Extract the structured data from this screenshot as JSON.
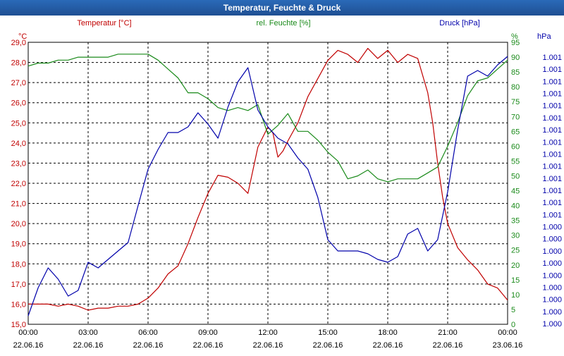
{
  "window": {
    "title": "Temperatur, Feuchte & Druck"
  },
  "colors": {
    "temperature": "#c00000",
    "humidity": "#1a8a1a",
    "pressure": "#0000aa",
    "grid": "#000000",
    "axis_text": "#000000"
  },
  "chart_data": {
    "type": "line",
    "title": "Temperatur, Feuchte & Druck",
    "grid": true,
    "x_axis": {
      "range": [
        "22.06.16 00:00",
        "23.06.16 00:00"
      ],
      "ticks": [
        {
          "time": "00:00",
          "date": "22.06.16"
        },
        {
          "time": "03:00",
          "date": "22.06.16"
        },
        {
          "time": "06:00",
          "date": "22.06.16"
        },
        {
          "time": "09:00",
          "date": "22.06.16"
        },
        {
          "time": "12:00",
          "date": "22.06.16"
        },
        {
          "time": "15:00",
          "date": "22.06.16"
        },
        {
          "time": "18:00",
          "date": "22.06.16"
        },
        {
          "time": "21:00",
          "date": "22.06.16"
        },
        {
          "time": "00:00",
          "date": "23.06.16"
        }
      ]
    },
    "y_axes": {
      "temperature": {
        "unit": "°C",
        "label": "Temperatur [°C]",
        "min": 15.0,
        "max": 29.0,
        "ticks": [
          "15,0",
          "16,0",
          "17,0",
          "18,0",
          "19,0",
          "20,0",
          "21,0",
          "22,0",
          "23,0",
          "24,0",
          "25,0",
          "26,0",
          "27,0",
          "28,0",
          "29,0"
        ]
      },
      "humidity": {
        "unit": "%",
        "label": "rel. Feuchte [%]",
        "min": 0,
        "max": 95,
        "ticks": [
          "0",
          "5",
          "10",
          "15",
          "20",
          "25",
          "30",
          "35",
          "40",
          "45",
          "50",
          "55",
          "60",
          "65",
          "70",
          "75",
          "80",
          "85",
          "90",
          "95"
        ]
      },
      "pressure": {
        "unit": "hPa",
        "label": "Druck [hPa]",
        "tick_label": "1.001",
        "tick_label_low": "1.000",
        "ticks": [
          "1.000",
          "1.000",
          "1.000",
          "1.000",
          "1.000",
          "1.000",
          "1.000",
          "1.000",
          "1.000",
          "1.001",
          "1.001",
          "1.001",
          "1.001",
          "1.001",
          "1.001",
          "1.001",
          "1.001",
          "1.001",
          "1.001",
          "1.001",
          "1.001",
          "1.001",
          "1.001"
        ]
      }
    },
    "series": [
      {
        "name": "Temperatur [°C]",
        "axis": "temperature",
        "x_hours": [
          0,
          0.5,
          1,
          1.5,
          2,
          2.5,
          3,
          3.5,
          4,
          4.5,
          5,
          5.5,
          6,
          6.5,
          7,
          7.5,
          8,
          8.5,
          9,
          9.5,
          10,
          10.5,
          11,
          11.5,
          12,
          12.25,
          12.5,
          12.75,
          13,
          13.5,
          14,
          14.5,
          15,
          15.5,
          16,
          16.5,
          17,
          17.5,
          18,
          18.5,
          19,
          19.5,
          20,
          20.25,
          20.5,
          20.75,
          21,
          21.5,
          22,
          22.5,
          23,
          23.5,
          24
        ],
        "values": [
          16.0,
          16.0,
          16.0,
          15.9,
          16.0,
          15.9,
          15.7,
          15.8,
          15.8,
          15.9,
          15.9,
          16.0,
          16.3,
          16.8,
          17.5,
          17.9,
          19.0,
          20.3,
          21.5,
          22.4,
          22.3,
          22.0,
          21.5,
          23.8,
          24.8,
          24.5,
          23.3,
          23.6,
          24.1,
          25.0,
          26.3,
          27.2,
          28.1,
          28.6,
          28.4,
          28.0,
          28.7,
          28.2,
          28.6,
          28.0,
          28.4,
          28.2,
          26.5,
          25.0,
          23.0,
          21.3,
          20.0,
          18.8,
          18.2,
          17.7,
          17.0,
          16.8,
          16.2
        ]
      },
      {
        "name": "rel. Feuchte [%]",
        "axis": "humidity",
        "x_hours": [
          0,
          0.5,
          1,
          1.5,
          2,
          2.5,
          3,
          3.5,
          4,
          4.5,
          5,
          5.5,
          6,
          6.5,
          7,
          7.5,
          8,
          8.5,
          9,
          9.5,
          10,
          10.5,
          11,
          11.5,
          12,
          12.5,
          13,
          13.5,
          14,
          14.5,
          15,
          15.5,
          16,
          16.5,
          17,
          17.5,
          18,
          18.5,
          19,
          19.5,
          20,
          20.5,
          21,
          21.5,
          22,
          22.5,
          23,
          23.5,
          24
        ],
        "values": [
          87,
          88,
          88,
          89,
          89,
          90,
          90,
          90,
          90,
          91,
          91,
          91,
          91,
          89,
          86,
          83,
          78,
          78,
          76,
          73,
          72,
          73,
          72,
          74,
          64,
          67,
          71,
          65,
          65,
          62,
          58,
          55,
          49,
          50,
          52,
          49,
          48,
          49,
          49,
          49,
          51,
          53,
          60,
          68,
          77,
          82,
          83,
          86,
          89
        ]
      },
      {
        "name": "Druck [hPa]",
        "axis": "pressure",
        "x_hours": [
          0,
          0.5,
          1,
          1.5,
          2,
          2.5,
          3,
          3.5,
          4,
          4.5,
          5,
          5.5,
          6,
          6.5,
          7,
          7.5,
          8,
          8.5,
          9,
          9.5,
          10,
          10.5,
          11,
          11.5,
          12,
          12.5,
          13,
          13.5,
          14,
          14.5,
          15,
          15.5,
          16,
          16.5,
          17,
          17.5,
          18,
          18.5,
          19,
          19.5,
          20,
          20.5,
          21,
          21.5,
          22,
          22.5,
          23,
          23.5,
          24
        ],
        "levels": [
          0.03,
          0.13,
          0.2,
          0.16,
          0.1,
          0.12,
          0.22,
          0.2,
          0.23,
          0.26,
          0.29,
          0.42,
          0.55,
          0.62,
          0.68,
          0.68,
          0.7,
          0.75,
          0.71,
          0.66,
          0.77,
          0.86,
          0.91,
          0.76,
          0.7,
          0.66,
          0.64,
          0.59,
          0.55,
          0.45,
          0.3,
          0.26,
          0.26,
          0.26,
          0.25,
          0.23,
          0.22,
          0.24,
          0.32,
          0.34,
          0.26,
          0.3,
          0.47,
          0.69,
          0.88,
          0.9,
          0.88,
          0.92,
          0.95
        ]
      }
    ]
  }
}
